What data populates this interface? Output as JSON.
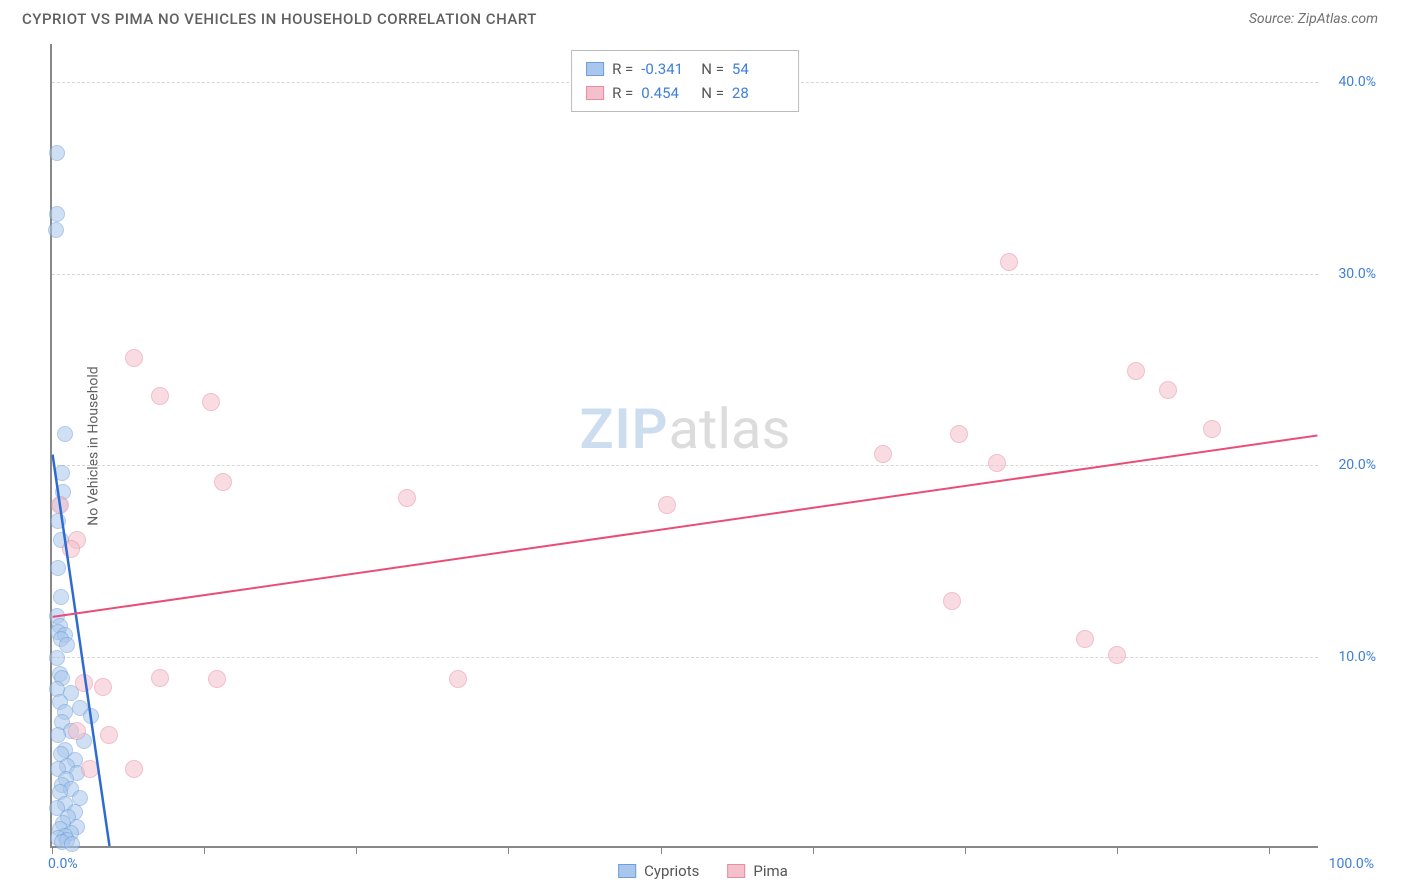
{
  "header": {
    "title": "CYPRIOT VS PIMA NO VEHICLES IN HOUSEHOLD CORRELATION CHART",
    "source": "Source: ZipAtlas.com"
  },
  "chart": {
    "type": "scatter",
    "ylabel": "No Vehicles in Household",
    "xlim": [
      0,
      100
    ],
    "ylim": [
      0,
      42
    ],
    "x_ticks": [
      0,
      12,
      24,
      36,
      48,
      60,
      72,
      84,
      96
    ],
    "x_tick_labels": {
      "0": "0.0%",
      "100": "100.0%"
    },
    "y_gridlines": [
      10,
      20,
      30,
      40
    ],
    "y_tick_labels": {
      "10": "10.0%",
      "20": "20.0%",
      "30": "30.0%",
      "40": "40.0%"
    },
    "background_color": "#ffffff",
    "grid_color": "#d8d8d8",
    "axis_color": "#888888",
    "tick_label_color": "#3d7fd9",
    "watermark": {
      "zip": "ZIP",
      "atlas": "atlas"
    },
    "series": [
      {
        "name": "Cypriots",
        "fill": "#a9c7ec",
        "stroke": "#6f9ed8",
        "fill_opacity": 0.55,
        "marker_radius": 8,
        "trend": {
          "x1": 0,
          "y1": 20.5,
          "x2": 4.5,
          "y2": 0,
          "color": "#2e6bd0",
          "width": 2.5
        },
        "points": [
          [
            0.4,
            36.2
          ],
          [
            0.4,
            33.0
          ],
          [
            0.3,
            32.2
          ],
          [
            1.0,
            21.5
          ],
          [
            0.8,
            19.5
          ],
          [
            0.9,
            18.5
          ],
          [
            0.6,
            17.8
          ],
          [
            0.5,
            17.0
          ],
          [
            0.7,
            16.0
          ],
          [
            0.5,
            14.5
          ],
          [
            0.7,
            13.0
          ],
          [
            0.4,
            12.0
          ],
          [
            0.6,
            11.5
          ],
          [
            0.5,
            11.2
          ],
          [
            1.0,
            11.0
          ],
          [
            0.7,
            10.8
          ],
          [
            1.2,
            10.5
          ],
          [
            0.4,
            9.8
          ],
          [
            0.6,
            9.0
          ],
          [
            0.8,
            8.8
          ],
          [
            0.4,
            8.2
          ],
          [
            1.5,
            8.0
          ],
          [
            0.6,
            7.5
          ],
          [
            2.2,
            7.2
          ],
          [
            1.0,
            7.0
          ],
          [
            3.1,
            6.8
          ],
          [
            0.8,
            6.5
          ],
          [
            1.5,
            6.0
          ],
          [
            0.5,
            5.8
          ],
          [
            2.5,
            5.5
          ],
          [
            1.0,
            5.0
          ],
          [
            0.7,
            4.8
          ],
          [
            1.8,
            4.5
          ],
          [
            1.2,
            4.2
          ],
          [
            0.5,
            4.0
          ],
          [
            2.0,
            3.8
          ],
          [
            1.1,
            3.5
          ],
          [
            0.8,
            3.2
          ],
          [
            1.5,
            3.0
          ],
          [
            0.6,
            2.8
          ],
          [
            2.2,
            2.5
          ],
          [
            1.0,
            2.2
          ],
          [
            0.4,
            2.0
          ],
          [
            1.8,
            1.8
          ],
          [
            1.3,
            1.5
          ],
          [
            0.9,
            1.2
          ],
          [
            2.0,
            1.0
          ],
          [
            0.6,
            0.9
          ],
          [
            1.5,
            0.7
          ],
          [
            1.0,
            0.5
          ],
          [
            0.5,
            0.4
          ],
          [
            1.2,
            0.3
          ],
          [
            0.8,
            0.2
          ],
          [
            1.6,
            0.1
          ]
        ]
      },
      {
        "name": "Pima",
        "fill": "#f4c0cb",
        "stroke": "#e98ba2",
        "fill_opacity": 0.55,
        "marker_radius": 9,
        "trend": {
          "x1": 0,
          "y1": 12.0,
          "x2": 100,
          "y2": 21.5,
          "color": "#e94d7a",
          "width": 2
        },
        "points": [
          [
            0.6,
            17.8
          ],
          [
            2.0,
            16.0
          ],
          [
            1.5,
            15.5
          ],
          [
            6.5,
            25.5
          ],
          [
            8.5,
            23.5
          ],
          [
            12.5,
            23.2
          ],
          [
            13.5,
            19.0
          ],
          [
            28.0,
            18.2
          ],
          [
            48.5,
            17.8
          ],
          [
            75.5,
            30.5
          ],
          [
            71.5,
            21.5
          ],
          [
            65.5,
            20.5
          ],
          [
            74.5,
            20.0
          ],
          [
            85.5,
            24.8
          ],
          [
            88.0,
            23.8
          ],
          [
            91.5,
            21.8
          ],
          [
            71.0,
            12.8
          ],
          [
            81.5,
            10.8
          ],
          [
            84.0,
            10.0
          ],
          [
            32.0,
            8.7
          ],
          [
            8.5,
            8.8
          ],
          [
            13.0,
            8.7
          ],
          [
            2.5,
            8.5
          ],
          [
            4.0,
            8.3
          ],
          [
            2.0,
            6.0
          ],
          [
            4.5,
            5.8
          ],
          [
            3.0,
            4.0
          ],
          [
            6.5,
            4.0
          ]
        ]
      }
    ],
    "legend_top": [
      {
        "swatch_fill": "#a9c7ec",
        "swatch_stroke": "#6f9ed8",
        "r_label": "R =",
        "r_val": "-0.341",
        "n_label": "N =",
        "n_val": "54"
      },
      {
        "swatch_fill": "#f4c0cb",
        "swatch_stroke": "#e98ba2",
        "r_label": "R =",
        "r_val": "0.454",
        "n_label": "N =",
        "n_val": "28"
      }
    ],
    "legend_bottom": [
      {
        "swatch_fill": "#a9c7ec",
        "swatch_stroke": "#6f9ed8",
        "label": "Cypriots"
      },
      {
        "swatch_fill": "#f4c0cb",
        "swatch_stroke": "#e98ba2",
        "label": "Pima"
      }
    ]
  }
}
